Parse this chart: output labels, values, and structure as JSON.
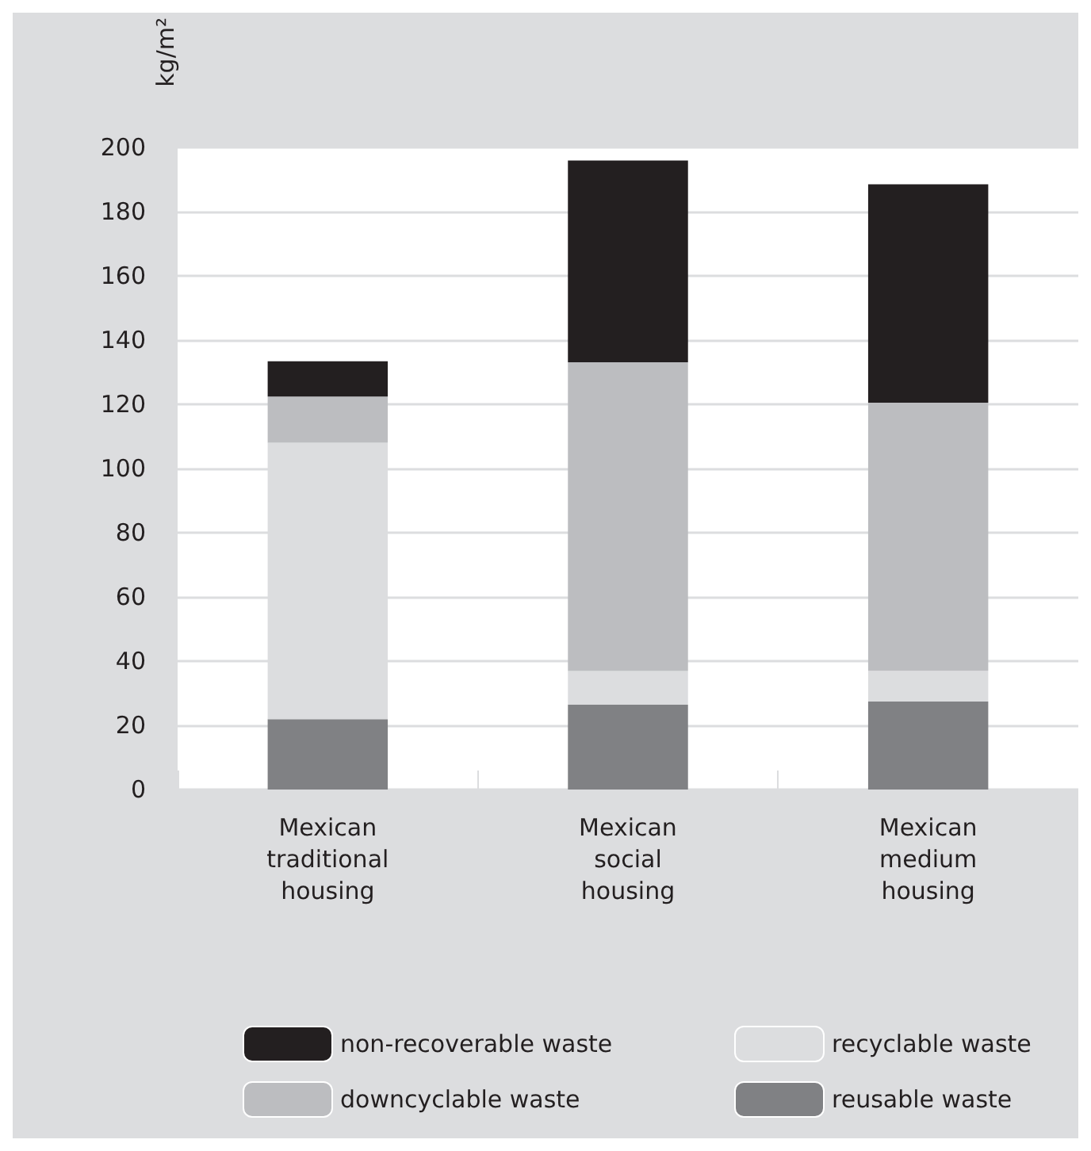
{
  "chart_data": {
    "type": "bar",
    "ylabel": "kg/m²",
    "stacked": true,
    "categories": [
      "Mexican\ntraditional\nhousing",
      "Mexican\nsocial\nhousing",
      "Mexican\nmedium\nhousing"
    ],
    "series": [
      {
        "name": "reusable waste",
        "color": "#808184",
        "values": [
          21.9,
          26.4,
          27.4
        ]
      },
      {
        "name": "recyclable waste",
        "color": "#dcdddf",
        "values": [
          86.1,
          10.5,
          9.6
        ]
      },
      {
        "name": "downcyclable waste",
        "color": "#bcbdc0",
        "values": [
          14.4,
          96.2,
          83.5
        ]
      },
      {
        "name": "non-recoverable waste",
        "color": "#231f20",
        "values": [
          11,
          62.8,
          68
        ]
      }
    ],
    "ylim": [
      0,
      200
    ],
    "yticks": [
      0,
      20,
      40,
      60,
      80,
      100,
      120,
      140,
      160,
      180,
      200
    ],
    "grid": "y",
    "legend": "bottom"
  }
}
